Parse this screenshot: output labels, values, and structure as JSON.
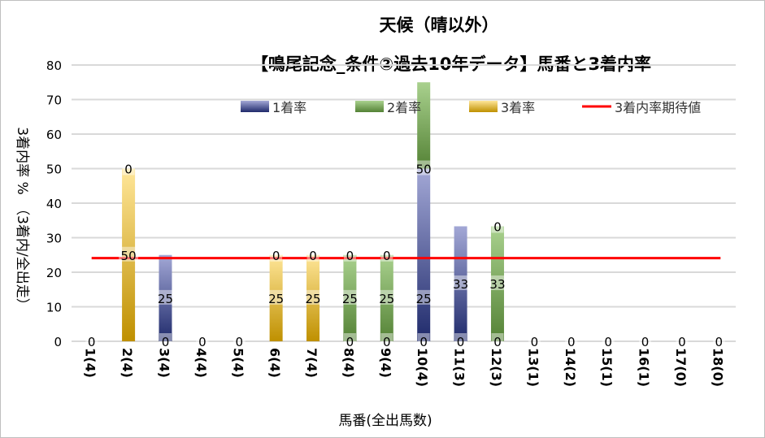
{
  "chart_data": {
    "type": "bar",
    "stacked": true,
    "title": "天候（晴以外）",
    "subtitle": "【鳴尾記念_条件②過去10年データ】馬番と3着内率",
    "xlabel": "馬番(全出馬数)",
    "ylabel": "3着内率 %　（3着内/全出走）",
    "ylim": [
      0,
      80
    ],
    "yticks": [
      0,
      10,
      20,
      30,
      40,
      50,
      60,
      70,
      80
    ],
    "grid": true,
    "legend_position": "top",
    "categories": [
      "1(4)",
      "2(4)",
      "3(4)",
      "4(4)",
      "5(4)",
      "6(4)",
      "7(4)",
      "8(4)",
      "9(4)",
      "10(4)",
      "11(3)",
      "12(3)",
      "13(1)",
      "14(2)",
      "15(1)",
      "16(1)",
      "17(0)",
      "18(0)"
    ],
    "series": [
      {
        "name": "1着率",
        "color_dark": "#1f2a6b",
        "color_light": "#a3a8d6",
        "values": [
          0,
          0,
          25,
          0,
          0,
          0,
          0,
          0,
          0,
          50,
          33.3,
          0,
          0,
          0,
          0,
          0,
          0,
          0
        ]
      },
      {
        "name": "2着率",
        "color_dark": "#548235",
        "color_light": "#a9d18e",
        "values": [
          0,
          0,
          0,
          0,
          0,
          0,
          0,
          25,
          25,
          25,
          0,
          33.3,
          0,
          0,
          0,
          0,
          0,
          0
        ]
      },
      {
        "name": "3着率",
        "color_dark": "#bf9000",
        "color_light": "#ffe699",
        "values": [
          0,
          50,
          0,
          0,
          0,
          25,
          25,
          0,
          0,
          0,
          0,
          0,
          0,
          0,
          0,
          0,
          0,
          0
        ]
      }
    ],
    "reference_line": {
      "name": "3着内率期待値",
      "value": 24.1,
      "color": "#ff0000"
    },
    "data_labels": [
      [
        {
          "text": "0",
          "y": 0
        }
      ],
      [
        {
          "text": "50",
          "y": 25
        },
        {
          "text": "0",
          "y": 50
        }
      ],
      [
        {
          "text": "0",
          "y": 0
        },
        {
          "text": "25",
          "y": 12.5
        }
      ],
      [
        {
          "text": "0",
          "y": 0
        }
      ],
      [
        {
          "text": "0",
          "y": 0
        }
      ],
      [
        {
          "text": "25",
          "y": 12.5
        },
        {
          "text": "0",
          "y": 25
        }
      ],
      [
        {
          "text": "25",
          "y": 12.5
        },
        {
          "text": "0",
          "y": 25
        }
      ],
      [
        {
          "text": "0",
          "y": 0
        },
        {
          "text": "25",
          "y": 12.5
        },
        {
          "text": "0",
          "y": 25
        }
      ],
      [
        {
          "text": "0",
          "y": 0
        },
        {
          "text": "25",
          "y": 12.5
        },
        {
          "text": "0",
          "y": 25
        }
      ],
      [
        {
          "text": "0",
          "y": 0
        },
        {
          "text": "25",
          "y": 12.5
        },
        {
          "text": "50",
          "y": 50
        }
      ],
      [
        {
          "text": "0",
          "y": 0
        },
        {
          "text": "33",
          "y": 16.7
        }
      ],
      [
        {
          "text": "0",
          "y": 0
        },
        {
          "text": "33",
          "y": 16.7
        },
        {
          "text": "0",
          "y": 33.3
        }
      ],
      [
        {
          "text": "0",
          "y": 0
        }
      ],
      [
        {
          "text": "0",
          "y": 0
        }
      ],
      [
        {
          "text": "0",
          "y": 0
        }
      ],
      [
        {
          "text": "0",
          "y": 0
        }
      ],
      [
        {
          "text": "0",
          "y": 0
        }
      ],
      [
        {
          "text": "0",
          "y": 0
        }
      ]
    ]
  }
}
